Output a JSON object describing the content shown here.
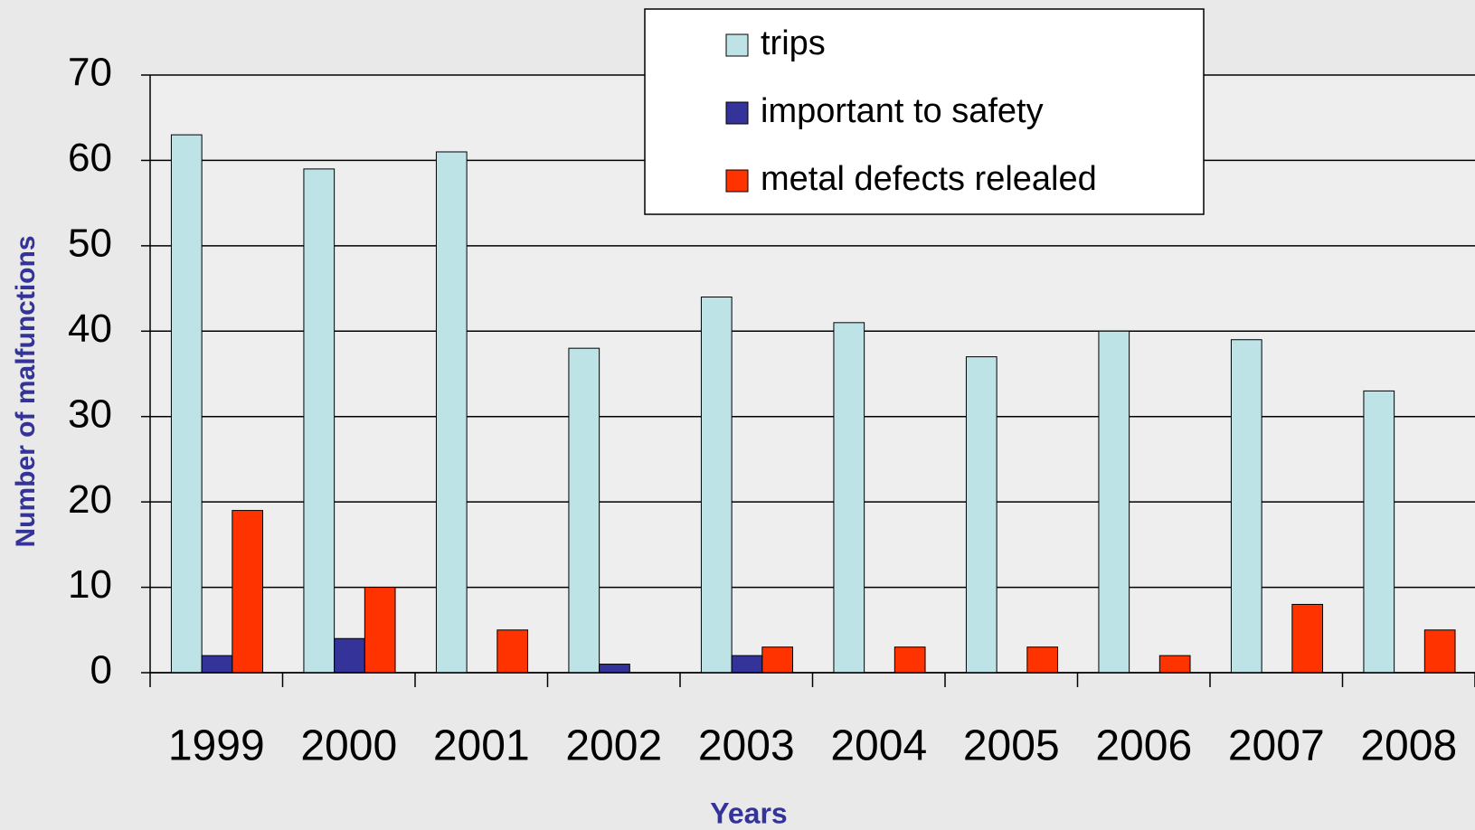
{
  "chart_data": {
    "type": "bar",
    "x_label": "Years",
    "y_label": "Number of malfunctions",
    "categories": [
      "1999",
      "2000",
      "2001",
      "2002",
      "2003",
      "2004",
      "2005",
      "2006",
      "2007",
      "2008"
    ],
    "series": [
      {
        "name": "trips",
        "color": "#bde3e6",
        "values": [
          63,
          59,
          61,
          38,
          44,
          41,
          37,
          40,
          39,
          33
        ]
      },
      {
        "name": "important to safety",
        "color": "#333399",
        "values": [
          2,
          4,
          0,
          1,
          2,
          0,
          0,
          0,
          0,
          0
        ]
      },
      {
        "name": "metal defects relealed",
        "color": "#ff3300",
        "values": [
          19,
          10,
          5,
          0,
          3,
          3,
          3,
          2,
          8,
          5
        ]
      }
    ],
    "ylim": [
      0,
      70
    ],
    "yticks": [
      0,
      10,
      20,
      30,
      40,
      50,
      60,
      70
    ],
    "grid": true,
    "legend": "upper center"
  }
}
